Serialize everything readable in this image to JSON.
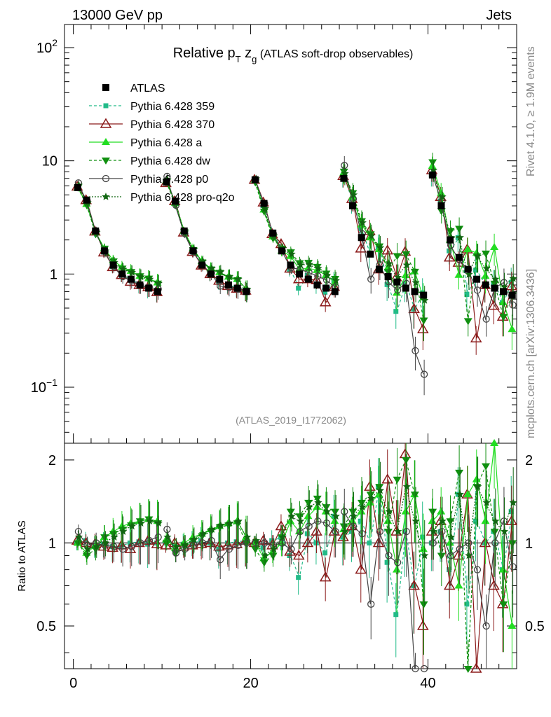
{
  "header": {
    "left": "13000 GeV pp",
    "right": "Jets",
    "side_top": "Rivet 4.1.0, ≥ 1.9M events",
    "side_bottom": "mcplots.cern.ch [arXiv:1306.3436]"
  },
  "colors": {
    "ATLAS": "#000000",
    "Pythia 6.428 359": "#22bb88",
    "Pythia 6.428 370": "#8b1a1a",
    "Pythia 6.428 a": "#22dd22",
    "Pythia 6.428 dw": "#109010",
    "Pythia 6.428 p0": "#444444",
    "Pythia 6.428 pro-q2o": "#116611"
  },
  "chart_data": {
    "type": "line",
    "title_main": "Relative p",
    "title_sub": "T",
    "title_z": " z",
    "title_zsub": "g",
    "title_tail": " (ATLAS soft-drop observables)",
    "analysis_label": "(ATLAS_2019_I1772062)",
    "yscale": "log",
    "ylim": [
      0.032,
      160
    ],
    "xlim": [
      -1,
      50
    ],
    "y_tick_labels": [
      {
        "value": 100,
        "base": "10",
        "exp": "2"
      },
      {
        "value": 10,
        "base": "10",
        "exp": ""
      },
      {
        "value": 1,
        "base": "1",
        "exp": ""
      },
      {
        "value": 0.1,
        "base": "10",
        "exp": "−1"
      }
    ],
    "x_tick_labels": [
      "0",
      "20",
      "40"
    ],
    "ratio_ylabel": "Ratio to ATLAS",
    "ratio_ylim": [
      0.35,
      2.3
    ],
    "ratio_tick_labels": [
      "2",
      "1",
      "0.5"
    ],
    "legend": [
      "ATLAS",
      "Pythia 6.428 359",
      "Pythia 6.428 370",
      "Pythia 6.428 a",
      "Pythia 6.428 dw",
      "Pythia 6.428 p0",
      "Pythia 6.428 pro-q2o"
    ],
    "x": [
      0.5,
      1.5,
      2.5,
      3.5,
      4.5,
      5.5,
      6.5,
      7.5,
      8.5,
      9.5,
      10.5,
      11.5,
      12.5,
      13.5,
      14.5,
      15.5,
      16.5,
      17.5,
      18.5,
      19.5,
      20.5,
      21.5,
      22.5,
      23.5,
      24.5,
      25.5,
      26.5,
      27.5,
      28.5,
      29.5,
      30.5,
      31.5,
      32.5,
      33.5,
      34.5,
      35.5,
      36.5,
      37.5,
      38.5,
      39.5,
      40.5,
      41.5,
      42.5,
      43.5,
      44.5,
      45.5,
      46.5,
      47.5,
      48.5,
      49.5
    ],
    "atlas": [
      5.8,
      4.5,
      2.4,
      1.6,
      1.2,
      1.0,
      0.9,
      0.8,
      0.75,
      0.7,
      6.5,
      4.4,
      2.4,
      1.6,
      1.2,
      1.0,
      0.9,
      0.8,
      0.75,
      0.7,
      6.8,
      4.2,
      2.3,
      1.6,
      1.2,
      1.0,
      0.9,
      0.8,
      0.75,
      0.7,
      7.0,
      4.0,
      2.1,
      1.5,
      1.1,
      0.95,
      0.85,
      0.75,
      0.7,
      0.65,
      7.5,
      4.0,
      2.0,
      1.4,
      1.1,
      0.9,
      0.8,
      0.75,
      0.7,
      0.65
    ],
    "series": [
      {
        "name": "Pythia 6.428 359",
        "ratio": [
          1.0,
          1.02,
          0.97,
          0.99,
          0.97,
          0.98,
          1.0,
          1.01,
          0.99,
          1.0,
          1.0,
          0.98,
          0.99,
          1.0,
          1.02,
          1.0,
          0.95,
          1.0,
          1.01,
          1.02,
          1.0,
          0.96,
          1.02,
          1.05,
          0.9,
          0.75,
          1.08,
          1.0,
          0.92,
          1.25,
          1.05,
          1.1,
          1.2,
          1.0,
          1.6,
          0.85,
          0.55,
          1.1,
          0.7,
          1.05,
          1.0,
          1.1,
          0.8,
          1.5,
          0.6,
          1.2,
          1.0,
          1.1,
          0.8,
          1.3
        ]
      },
      {
        "name": "Pythia 6.428 370",
        "ratio": [
          1.02,
          1.0,
          0.99,
          0.97,
          0.96,
          0.98,
          0.95,
          1.0,
          1.02,
          0.99,
          0.98,
          1.0,
          0.97,
          0.98,
          0.99,
          1.0,
          0.97,
          0.98,
          0.99,
          1.02,
          1.0,
          1.02,
          0.98,
          1.15,
          0.93,
          0.9,
          1.0,
          1.1,
          0.75,
          1.1,
          1.05,
          1.15,
          0.8,
          1.6,
          1.0,
          1.7,
          1.1,
          2.1,
          0.7,
          0.5,
          1.1,
          1.2,
          0.7,
          0.9,
          1.5,
          0.3,
          1.0,
          0.7,
          0.6,
          1.2
        ]
      },
      {
        "name": "Pythia 6.428 a",
        "ratio": [
          1.0,
          0.92,
          0.98,
          1.05,
          1.1,
          1.15,
          1.18,
          1.2,
          1.22,
          1.2,
          1.03,
          0.96,
          1.0,
          1.05,
          1.08,
          1.12,
          1.15,
          1.18,
          1.2,
          1.05,
          1.0,
          0.88,
          0.93,
          1.0,
          1.2,
          1.1,
          1.25,
          1.35,
          1.3,
          1.2,
          1.12,
          1.2,
          1.3,
          1.4,
          1.5,
          1.2,
          0.8,
          1.3,
          1.5,
          0.95,
          1.2,
          1.3,
          1.0,
          0.7,
          1.5,
          1.7,
          1.2,
          2.3,
          0.8,
          0.5
        ]
      },
      {
        "name": "Pythia 6.428 dw",
        "ratio": [
          1.0,
          0.9,
          0.95,
          1.05,
          1.08,
          1.12,
          1.16,
          1.2,
          1.22,
          1.18,
          1.0,
          0.92,
          0.98,
          1.02,
          1.06,
          1.1,
          1.14,
          1.16,
          1.18,
          1.0,
          0.95,
          0.85,
          0.9,
          1.05,
          1.3,
          1.25,
          1.4,
          1.45,
          1.35,
          1.3,
          1.15,
          1.3,
          1.4,
          1.5,
          1.6,
          1.1,
          1.7,
          2.0,
          1.5,
          0.6,
          1.3,
          0.9,
          1.2,
          1.8,
          0.35,
          1.6,
          1.9,
          1.1,
          0.6,
          1.0
        ]
      },
      {
        "name": "Pythia 6.428 p0",
        "ratio": [
          1.1,
          0.98,
          1.0,
          0.98,
          0.97,
          0.95,
          0.97,
          1.0,
          1.02,
          1.05,
          1.12,
          0.92,
          0.95,
          0.98,
          1.0,
          1.02,
          0.87,
          0.95,
          0.98,
          1.0,
          1.0,
          1.0,
          0.98,
          1.0,
          0.95,
          1.1,
          1.15,
          1.2,
          1.18,
          1.1,
          1.3,
          1.15,
          1.08,
          0.6,
          1.1,
          0.9,
          0.85,
          1.1,
          0.3,
          0.2,
          1.0,
          1.1,
          0.9,
          0.95,
          1.0,
          0.8,
          0.5,
          1.0,
          1.2,
          0.82
        ]
      },
      {
        "name": "Pythia 6.428 pro-q2o",
        "ratio": [
          1.05,
          0.95,
          0.97,
          1.0,
          1.05,
          1.1,
          1.15,
          1.18,
          1.2,
          1.18,
          1.05,
          0.97,
          0.98,
          1.03,
          1.08,
          1.12,
          1.16,
          1.18,
          1.2,
          1.05,
          1.02,
          0.9,
          0.95,
          1.05,
          1.25,
          1.2,
          1.35,
          1.4,
          1.3,
          1.25,
          1.1,
          1.25,
          1.35,
          1.45,
          1.55,
          1.3,
          1.1,
          1.6,
          1.2,
          0.9,
          1.1,
          1.2,
          1.05,
          1.5,
          0.9,
          1.6,
          1.4,
          1.2,
          1.1,
          1.4
        ]
      }
    ]
  }
}
